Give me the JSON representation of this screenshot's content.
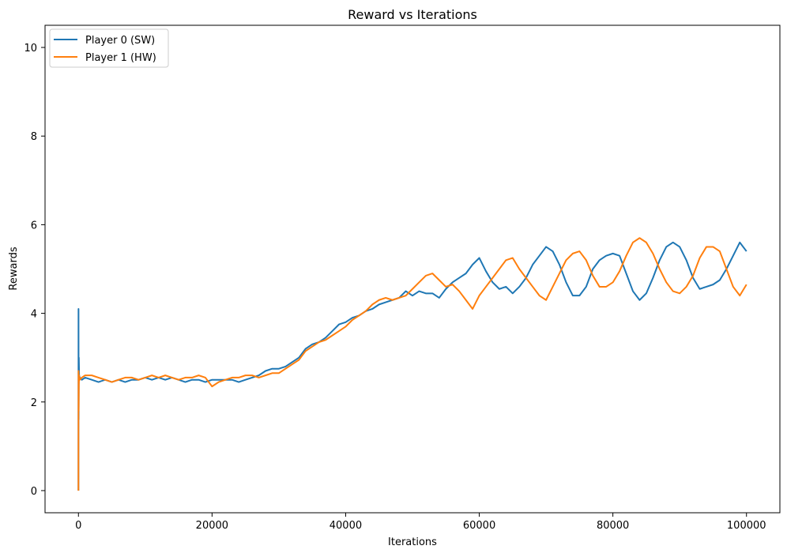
{
  "chart_data": {
    "type": "line",
    "title": "Reward vs Iterations",
    "xlabel": "Iterations",
    "ylabel": "Rewards",
    "xlim": [
      -5000,
      105000
    ],
    "ylim": [
      -0.5,
      10.5
    ],
    "xticks": [
      0,
      20000,
      40000,
      60000,
      80000,
      100000
    ],
    "yticks": [
      0,
      2,
      4,
      6,
      8,
      10
    ],
    "xtick_labels": [
      "0",
      "20000",
      "40000",
      "60000",
      "80000",
      "100000"
    ],
    "ytick_labels": [
      "0",
      "2",
      "4",
      "6",
      "8",
      "10"
    ],
    "grid": false,
    "legend_position": "top-left",
    "series": [
      {
        "name": "Player 0 (SW)",
        "color": "#1f77b4",
        "x": [
          0,
          10,
          30,
          60,
          100,
          200,
          500,
          1000,
          2000,
          3000,
          4000,
          5000,
          6000,
          7000,
          8000,
          9000,
          10000,
          11000,
          12000,
          13000,
          14000,
          15000,
          16000,
          17000,
          18000,
          19000,
          20000,
          21000,
          22000,
          23000,
          24000,
          25000,
          26000,
          27000,
          28000,
          29000,
          30000,
          31000,
          32000,
          33000,
          34000,
          35000,
          36000,
          37000,
          38000,
          39000,
          40000,
          41000,
          42000,
          43000,
          44000,
          45000,
          46000,
          47000,
          48000,
          49000,
          50000,
          51000,
          52000,
          53000,
          54000,
          55000,
          56000,
          57000,
          58000,
          59000,
          60000,
          61000,
          62000,
          63000,
          64000,
          65000,
          66000,
          67000,
          68000,
          69000,
          70000,
          71000,
          72000,
          73000,
          74000,
          75000,
          76000,
          77000,
          78000,
          79000,
          80000,
          81000,
          82000,
          83000,
          84000,
          85000,
          86000,
          87000,
          88000,
          89000,
          90000,
          91000,
          92000,
          93000,
          94000,
          95000,
          96000,
          97000,
          98000,
          99000,
          100000
        ],
        "y": [
          0,
          4.1,
          1.6,
          3.0,
          2.6,
          2.55,
          2.5,
          2.55,
          2.5,
          2.45,
          2.5,
          2.45,
          2.5,
          2.45,
          2.5,
          2.5,
          2.55,
          2.5,
          2.55,
          2.5,
          2.55,
          2.5,
          2.45,
          2.5,
          2.5,
          2.45,
          2.5,
          2.5,
          2.5,
          2.5,
          2.45,
          2.5,
          2.55,
          2.6,
          2.7,
          2.75,
          2.75,
          2.8,
          2.9,
          3.0,
          3.2,
          3.3,
          3.35,
          3.45,
          3.6,
          3.75,
          3.8,
          3.9,
          3.95,
          4.05,
          4.1,
          4.2,
          4.25,
          4.3,
          4.35,
          4.5,
          4.4,
          4.5,
          4.45,
          4.45,
          4.35,
          4.55,
          4.7,
          4.8,
          4.9,
          5.1,
          5.25,
          4.95,
          4.7,
          4.55,
          4.6,
          4.45,
          4.6,
          4.8,
          5.1,
          5.3,
          5.5,
          5.4,
          5.1,
          4.7,
          4.4,
          4.4,
          4.6,
          5.0,
          5.2,
          5.3,
          5.35,
          5.3,
          4.9,
          4.5,
          4.3,
          4.45,
          4.8,
          5.2,
          5.5,
          5.6,
          5.5,
          5.2,
          4.8,
          4.55,
          4.6,
          4.65,
          4.75,
          5.0,
          5.3,
          5.6,
          5.4
        ]
      },
      {
        "name": "Player 1 (HW)",
        "color": "#ff7f0e",
        "x": [
          0,
          10,
          30,
          60,
          100,
          200,
          500,
          1000,
          2000,
          3000,
          4000,
          5000,
          6000,
          7000,
          8000,
          9000,
          10000,
          11000,
          12000,
          13000,
          14000,
          15000,
          16000,
          17000,
          18000,
          19000,
          20000,
          21000,
          22000,
          23000,
          24000,
          25000,
          26000,
          27000,
          28000,
          29000,
          30000,
          31000,
          32000,
          33000,
          34000,
          35000,
          36000,
          37000,
          38000,
          39000,
          40000,
          41000,
          42000,
          43000,
          44000,
          45000,
          46000,
          47000,
          48000,
          49000,
          50000,
          51000,
          52000,
          53000,
          54000,
          55000,
          56000,
          57000,
          58000,
          59000,
          60000,
          61000,
          62000,
          63000,
          64000,
          65000,
          66000,
          67000,
          68000,
          69000,
          70000,
          71000,
          72000,
          73000,
          74000,
          75000,
          76000,
          77000,
          78000,
          79000,
          80000,
          81000,
          82000,
          83000,
          84000,
          85000,
          86000,
          87000,
          88000,
          89000,
          90000,
          91000,
          92000,
          93000,
          94000,
          95000,
          96000,
          97000,
          98000,
          99000,
          100000
        ],
        "y": [
          0,
          2.7,
          1.8,
          2.4,
          2.6,
          2.5,
          2.55,
          2.6,
          2.6,
          2.55,
          2.5,
          2.45,
          2.5,
          2.55,
          2.55,
          2.5,
          2.55,
          2.6,
          2.55,
          2.6,
          2.55,
          2.5,
          2.55,
          2.55,
          2.6,
          2.55,
          2.35,
          2.45,
          2.5,
          2.55,
          2.55,
          2.6,
          2.6,
          2.55,
          2.6,
          2.65,
          2.65,
          2.75,
          2.85,
          2.95,
          3.15,
          3.25,
          3.35,
          3.4,
          3.5,
          3.6,
          3.7,
          3.85,
          3.95,
          4.05,
          4.2,
          4.3,
          4.35,
          4.3,
          4.35,
          4.4,
          4.55,
          4.7,
          4.85,
          4.9,
          4.75,
          4.6,
          4.65,
          4.5,
          4.3,
          4.1,
          4.4,
          4.6,
          4.8,
          5.0,
          5.2,
          5.25,
          5.0,
          4.8,
          4.6,
          4.4,
          4.3,
          4.6,
          4.9,
          5.2,
          5.35,
          5.4,
          5.2,
          4.85,
          4.6,
          4.6,
          4.7,
          4.95,
          5.3,
          5.6,
          5.7,
          5.6,
          5.35,
          5.0,
          4.7,
          4.5,
          4.45,
          4.6,
          4.85,
          5.25,
          5.5,
          5.5,
          5.4,
          5.0,
          4.6,
          4.4,
          4.65
        ]
      }
    ]
  }
}
